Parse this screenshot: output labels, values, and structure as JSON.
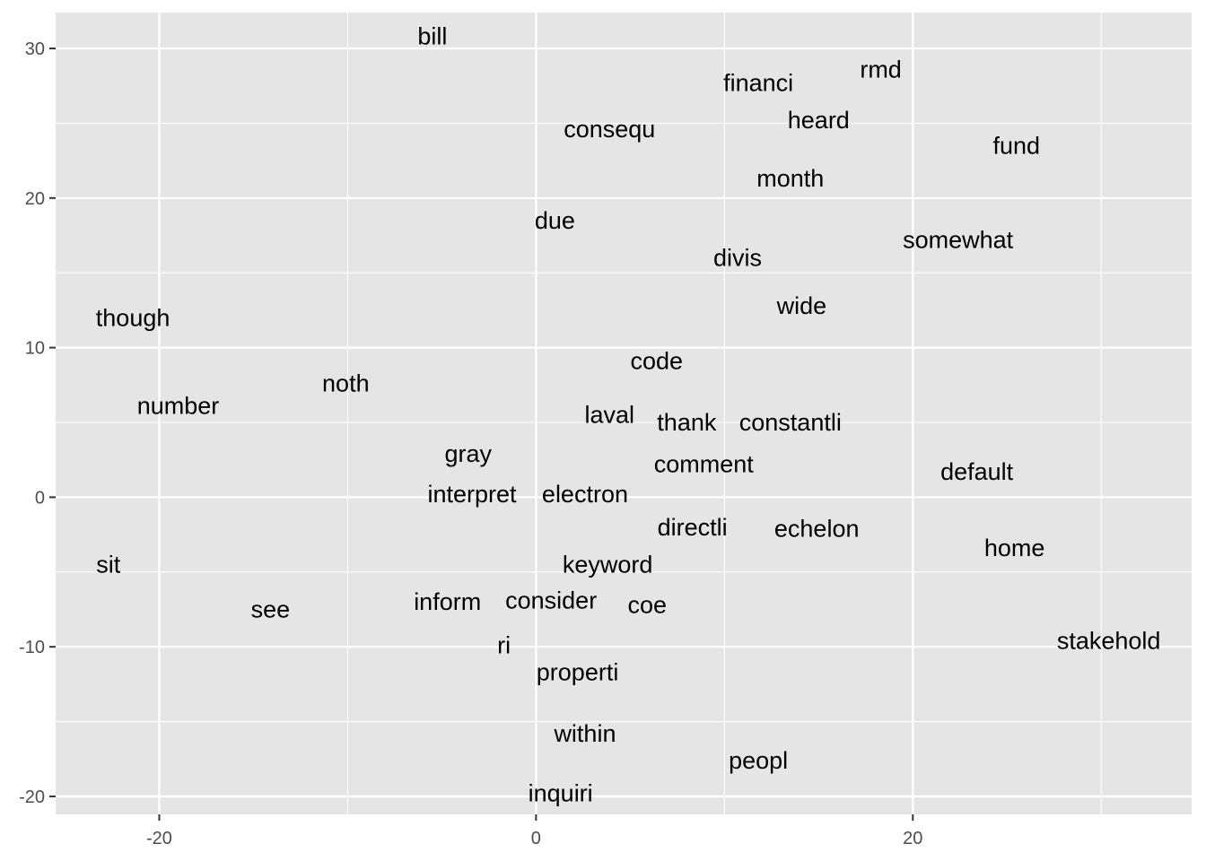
{
  "chart_data": {
    "type": "scatter",
    "title": "",
    "xlabel": "",
    "ylabel": "",
    "xlim": [
      -25.5,
      34.8
    ],
    "ylim": [
      -21.2,
      32.4
    ],
    "x_ticks": [
      -20,
      0,
      20
    ],
    "x_tick_labels": [
      "-20",
      "0",
      "20"
    ],
    "x_minor_ticks": [
      -10,
      10,
      30
    ],
    "y_ticks": [
      -20,
      -10,
      0,
      10,
      20,
      30
    ],
    "y_tick_labels": [
      "-20",
      "-10",
      "0",
      "10",
      "20",
      "30"
    ],
    "y_minor_ticks": [
      -15,
      -5,
      5,
      15,
      25
    ],
    "grid": true,
    "panel_color": "#e5e5e5",
    "grid_color": "#ffffff",
    "points": [
      {
        "label": "bill",
        "x": -5.5,
        "y": 30.8
      },
      {
        "label": "rmd",
        "x": 18.3,
        "y": 28.6
      },
      {
        "label": "financi",
        "x": 11.8,
        "y": 27.7
      },
      {
        "label": "heard",
        "x": 15.0,
        "y": 25.2
      },
      {
        "label": "consequ",
        "x": 3.9,
        "y": 24.6
      },
      {
        "label": "fund",
        "x": 25.5,
        "y": 23.5
      },
      {
        "label": "month",
        "x": 13.5,
        "y": 21.3
      },
      {
        "label": "due",
        "x": 1.0,
        "y": 18.5
      },
      {
        "label": "somewhat",
        "x": 22.4,
        "y": 17.2
      },
      {
        "label": "divis",
        "x": 10.7,
        "y": 16.0
      },
      {
        "label": "wide",
        "x": 14.1,
        "y": 12.8
      },
      {
        "label": "though",
        "x": -21.4,
        "y": 12.0
      },
      {
        "label": "code",
        "x": 6.4,
        "y": 9.1
      },
      {
        "label": "noth",
        "x": -10.1,
        "y": 7.6
      },
      {
        "label": "number",
        "x": -19.0,
        "y": 6.1
      },
      {
        "label": "laval",
        "x": 3.9,
        "y": 5.5
      },
      {
        "label": "thank",
        "x": 8.0,
        "y": 5.0
      },
      {
        "label": "constantli",
        "x": 13.5,
        "y": 5.0
      },
      {
        "label": "gray",
        "x": -3.6,
        "y": 2.9
      },
      {
        "label": "comment",
        "x": 8.9,
        "y": 2.2
      },
      {
        "label": "default",
        "x": 23.4,
        "y": 1.7
      },
      {
        "label": "interpret",
        "x": -3.4,
        "y": 0.2
      },
      {
        "label": "electron",
        "x": 2.6,
        "y": 0.2
      },
      {
        "label": "directli",
        "x": 8.3,
        "y": -2.0
      },
      {
        "label": "echelon",
        "x": 14.9,
        "y": -2.1
      },
      {
        "label": "home",
        "x": 25.4,
        "y": -3.4
      },
      {
        "label": "sit",
        "x": -22.7,
        "y": -4.5
      },
      {
        "label": "keyword",
        "x": 3.8,
        "y": -4.5
      },
      {
        "label": "consider",
        "x": 0.8,
        "y": -6.9
      },
      {
        "label": "inform",
        "x": -4.7,
        "y": -7.0
      },
      {
        "label": "coe",
        "x": 5.9,
        "y": -7.2
      },
      {
        "label": "see",
        "x": -14.1,
        "y": -7.5
      },
      {
        "label": "stakehold",
        "x": 30.4,
        "y": -9.6
      },
      {
        "label": "ri",
        "x": -1.7,
        "y": -9.9
      },
      {
        "label": "properti",
        "x": 2.2,
        "y": -11.7
      },
      {
        "label": "within",
        "x": 2.6,
        "y": -15.8
      },
      {
        "label": "peopl",
        "x": 11.8,
        "y": -17.6
      },
      {
        "label": "inquiri",
        "x": 1.3,
        "y": -19.8
      }
    ]
  }
}
